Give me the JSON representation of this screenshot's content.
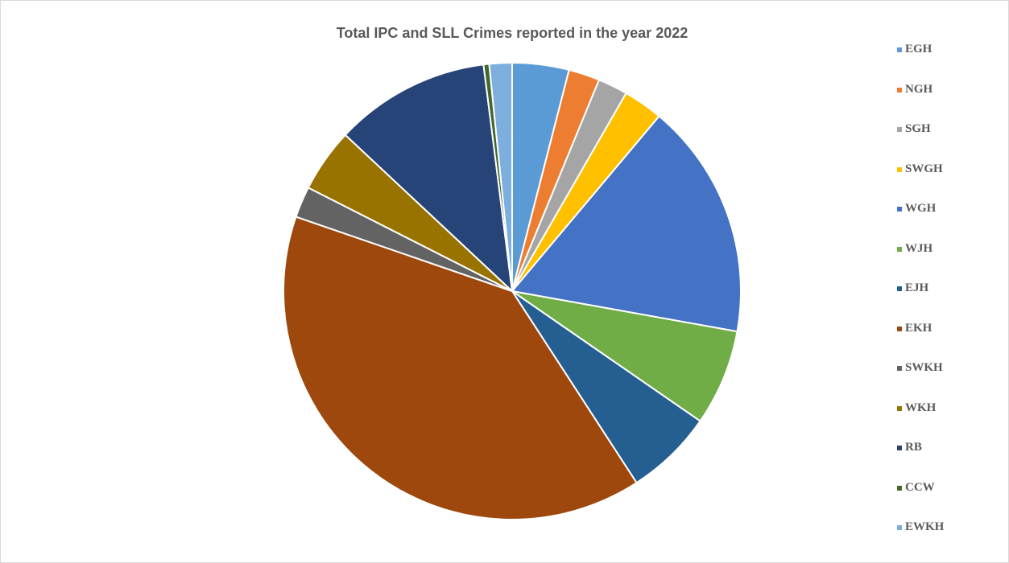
{
  "chart_data": {
    "type": "pie",
    "title": "Total IPC and SLL Crimes reported in the year 2022",
    "legend_position": "right",
    "start_angle_deg": 0,
    "direction": "clockwise",
    "slices": [
      {
        "label": "EGH",
        "value": 4.0,
        "color": "#5b9bd5"
      },
      {
        "label": "NGH",
        "value": 2.2,
        "color": "#ed7d31"
      },
      {
        "label": "SGH",
        "value": 2.1,
        "color": "#a5a5a5"
      },
      {
        "label": "SWGH",
        "value": 2.8,
        "color": "#ffc000"
      },
      {
        "label": "WGH",
        "value": 16.7,
        "color": "#4472c4"
      },
      {
        "label": "WJH",
        "value": 6.8,
        "color": "#70ad47"
      },
      {
        "label": "EJH",
        "value": 6.2,
        "color": "#255e91"
      },
      {
        "label": "EKH",
        "value": 39.4,
        "color": "#9e480e"
      },
      {
        "label": "SWKH",
        "value": 2.2,
        "color": "#636363"
      },
      {
        "label": "WKH",
        "value": 4.5,
        "color": "#997300"
      },
      {
        "label": "RB",
        "value": 11.0,
        "color": "#264478"
      },
      {
        "label": "CCW",
        "value": 0.4,
        "color": "#43682b"
      },
      {
        "label": "EWKH",
        "value": 1.6,
        "color": "#7cafdd"
      }
    ]
  }
}
